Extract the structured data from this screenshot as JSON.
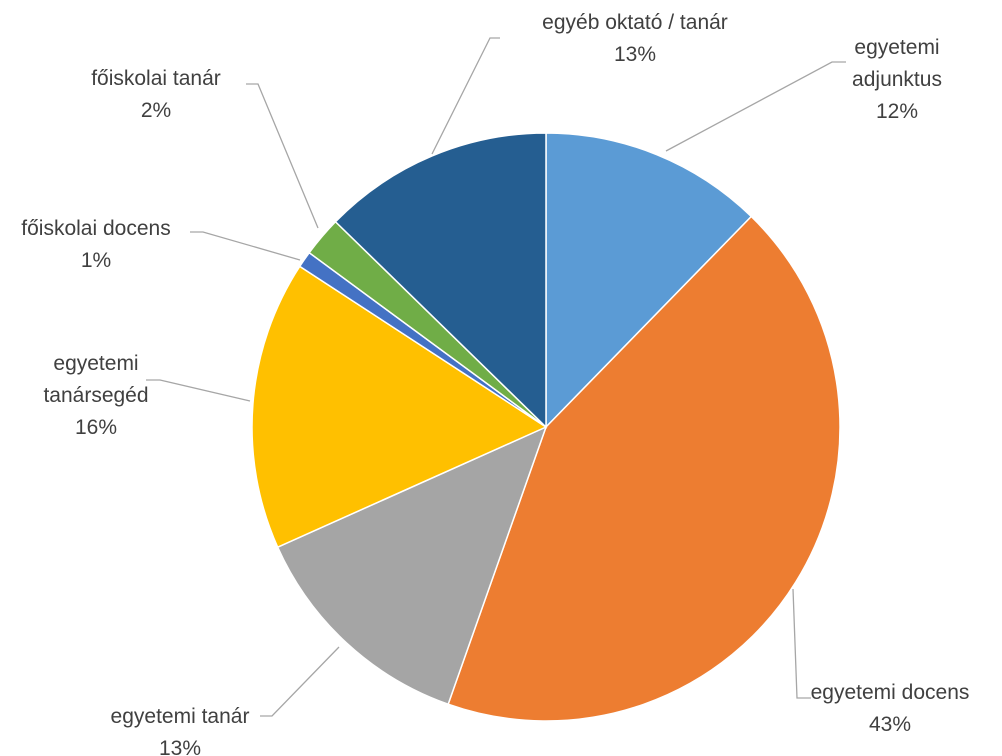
{
  "chart_data": {
    "type": "pie",
    "title": "",
    "legend": "none",
    "start_angle": "12 o'clock, clockwise",
    "slices": [
      {
        "label": [
          "egyetemi",
          "adjunktus"
        ],
        "percent_label": "12%",
        "value": 12.3,
        "color": "#5b9bd5"
      },
      {
        "label": [
          "egyetemi docens"
        ],
        "percent_label": "43%",
        "value": 43.1,
        "color": "#ed7d31"
      },
      {
        "label": [
          "egyetemi tanár"
        ],
        "percent_label": "13%",
        "value": 12.9,
        "color": "#a5a5a5"
      },
      {
        "label": [
          "egyetemi",
          "tanársegéd"
        ],
        "percent_label": "16%",
        "value": 15.9,
        "color": "#ffc000"
      },
      {
        "label": [
          "főiskolai docens"
        ],
        "percent_label": "1%",
        "value": 0.9,
        "color": "#4472c4"
      },
      {
        "label": [
          "főiskolai tanár"
        ],
        "percent_label": "2%",
        "value": 2.2,
        "color": "#70ad47"
      },
      {
        "label": [
          "egyéb oktató / tanár"
        ],
        "percent_label": "13%",
        "value": 12.7,
        "color": "#255e91"
      }
    ]
  }
}
